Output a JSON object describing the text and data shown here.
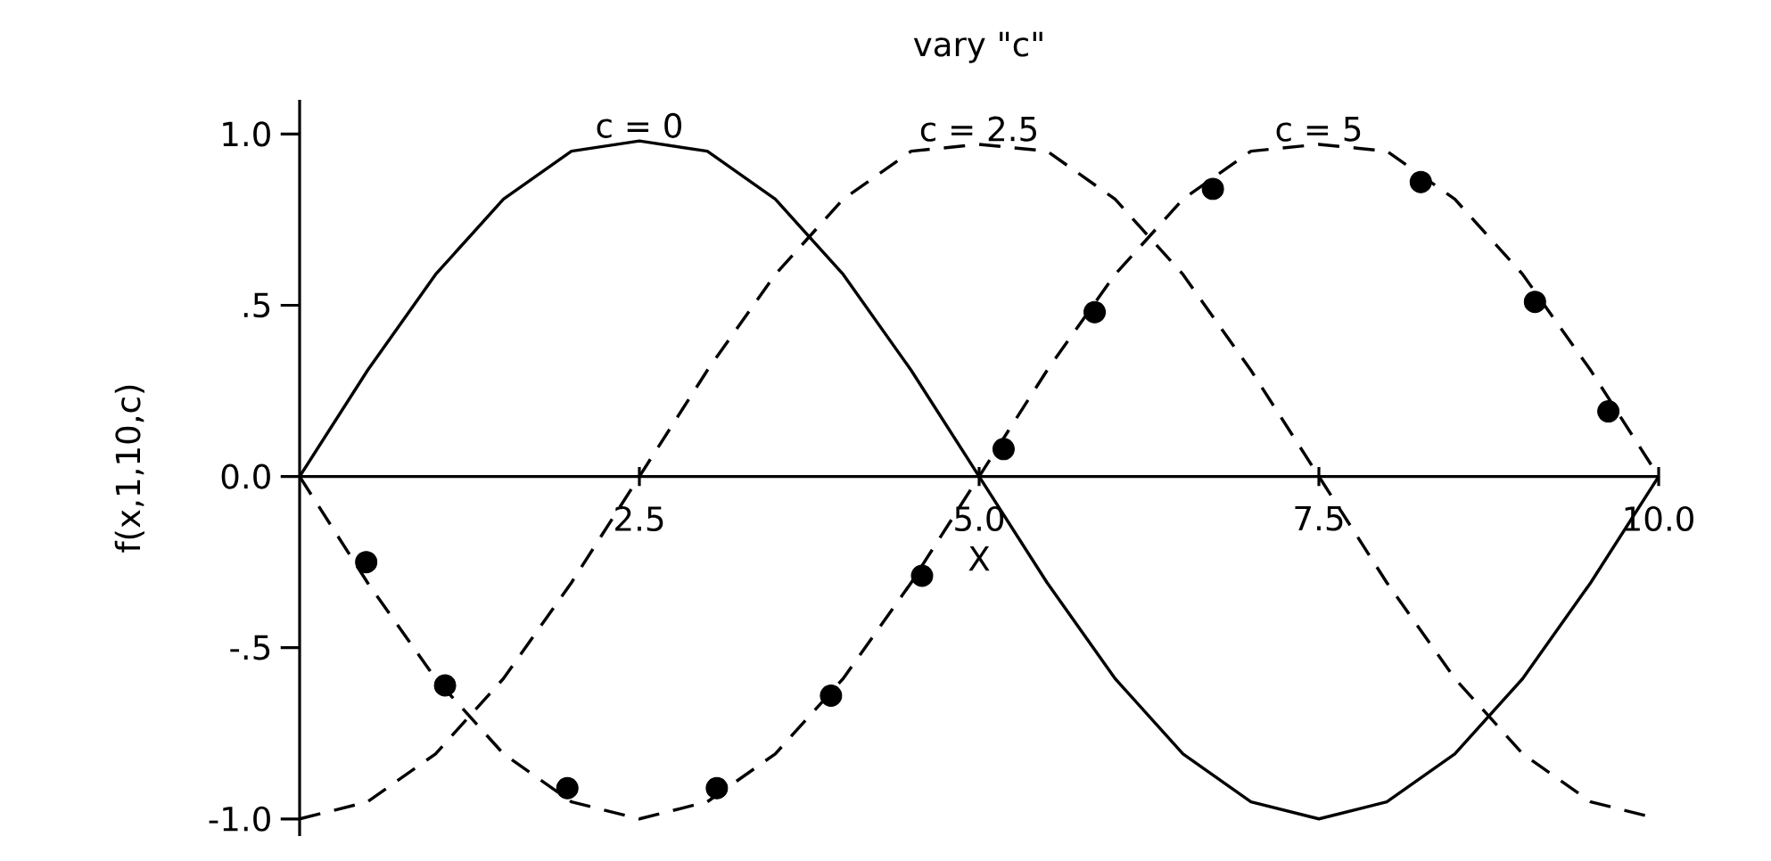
{
  "chart_data": {
    "type": "line",
    "title": "vary \"c\"",
    "xlabel": "X",
    "ylabel": "f(x,1,10,c)",
    "xlim": [
      0,
      10
    ],
    "ylim": [
      -1.05,
      1.1
    ],
    "xticks": [
      {
        "value": 2.5,
        "label": "2.5"
      },
      {
        "value": 5,
        "label": "5.0"
      },
      {
        "value": 7.5,
        "label": "7.5"
      },
      {
        "value": 10,
        "label": "10.0"
      }
    ],
    "yticks": [
      {
        "value": -1,
        "label": "-1.0"
      },
      {
        "value": -0.5,
        "label": "-.5"
      },
      {
        "value": 0,
        "label": "0.0"
      },
      {
        "value": 0.5,
        "label": ".5"
      },
      {
        "value": 1,
        "label": "1.0"
      }
    ],
    "x": [
      0,
      0.5,
      1,
      1.5,
      2,
      2.5,
      3,
      3.5,
      4,
      4.5,
      5,
      5.5,
      6,
      6.5,
      7,
      7.5,
      8,
      8.5,
      9,
      9.5,
      10
    ],
    "series": [
      {
        "color": "#000000",
        "line_style": "solid",
        "marker": "none",
        "values": [
          0,
          0.31,
          0.59,
          0.81,
          0.95,
          0.98,
          0.95,
          0.81,
          0.59,
          0.31,
          0,
          -0.31,
          -0.59,
          -0.81,
          -0.95,
          -1.0,
          -0.95,
          -0.81,
          -0.59,
          -0.31,
          0
        ]
      },
      {
        "color": "#000000",
        "line_style": "dashed",
        "marker": "none",
        "values": [
          -1.0,
          -0.95,
          -0.81,
          -0.59,
          -0.31,
          0,
          0.31,
          0.59,
          0.81,
          0.95,
          0.97,
          0.95,
          0.81,
          0.59,
          0.31,
          0,
          -0.31,
          -0.59,
          -0.81,
          -0.95,
          -1.0
        ]
      },
      {
        "color": "#000000",
        "line_style": "dashed",
        "marker": "none",
        "values": [
          0,
          -0.31,
          -0.59,
          -0.81,
          -0.95,
          -1.0,
          -0.95,
          -0.81,
          -0.59,
          -0.31,
          0,
          0.31,
          0.59,
          0.81,
          0.95,
          0.97,
          0.95,
          0.81,
          0.59,
          0.31,
          0
        ]
      },
      {
        "type": "scatter",
        "color": "#000000",
        "x": [
          0.49,
          1.07,
          1.97,
          3.07,
          3.91,
          4.58,
          5.18,
          5.85,
          6.72,
          8.25,
          9.09,
          9.63
        ],
        "values": [
          -0.25,
          -0.61,
          -0.91,
          -0.91,
          -0.64,
          -0.29,
          0.08,
          0.48,
          0.84,
          0.86,
          0.51,
          0.19
        ]
      }
    ],
    "marker": "circle",
    "annotations": [
      {
        "text": "c = 0",
        "x": 2.5,
        "y": 0.98
      },
      {
        "text": "c = 2.5",
        "x": 5.0,
        "y": 0.97
      },
      {
        "text": "c = 5",
        "x": 7.5,
        "y": 0.97
      }
    ]
  }
}
